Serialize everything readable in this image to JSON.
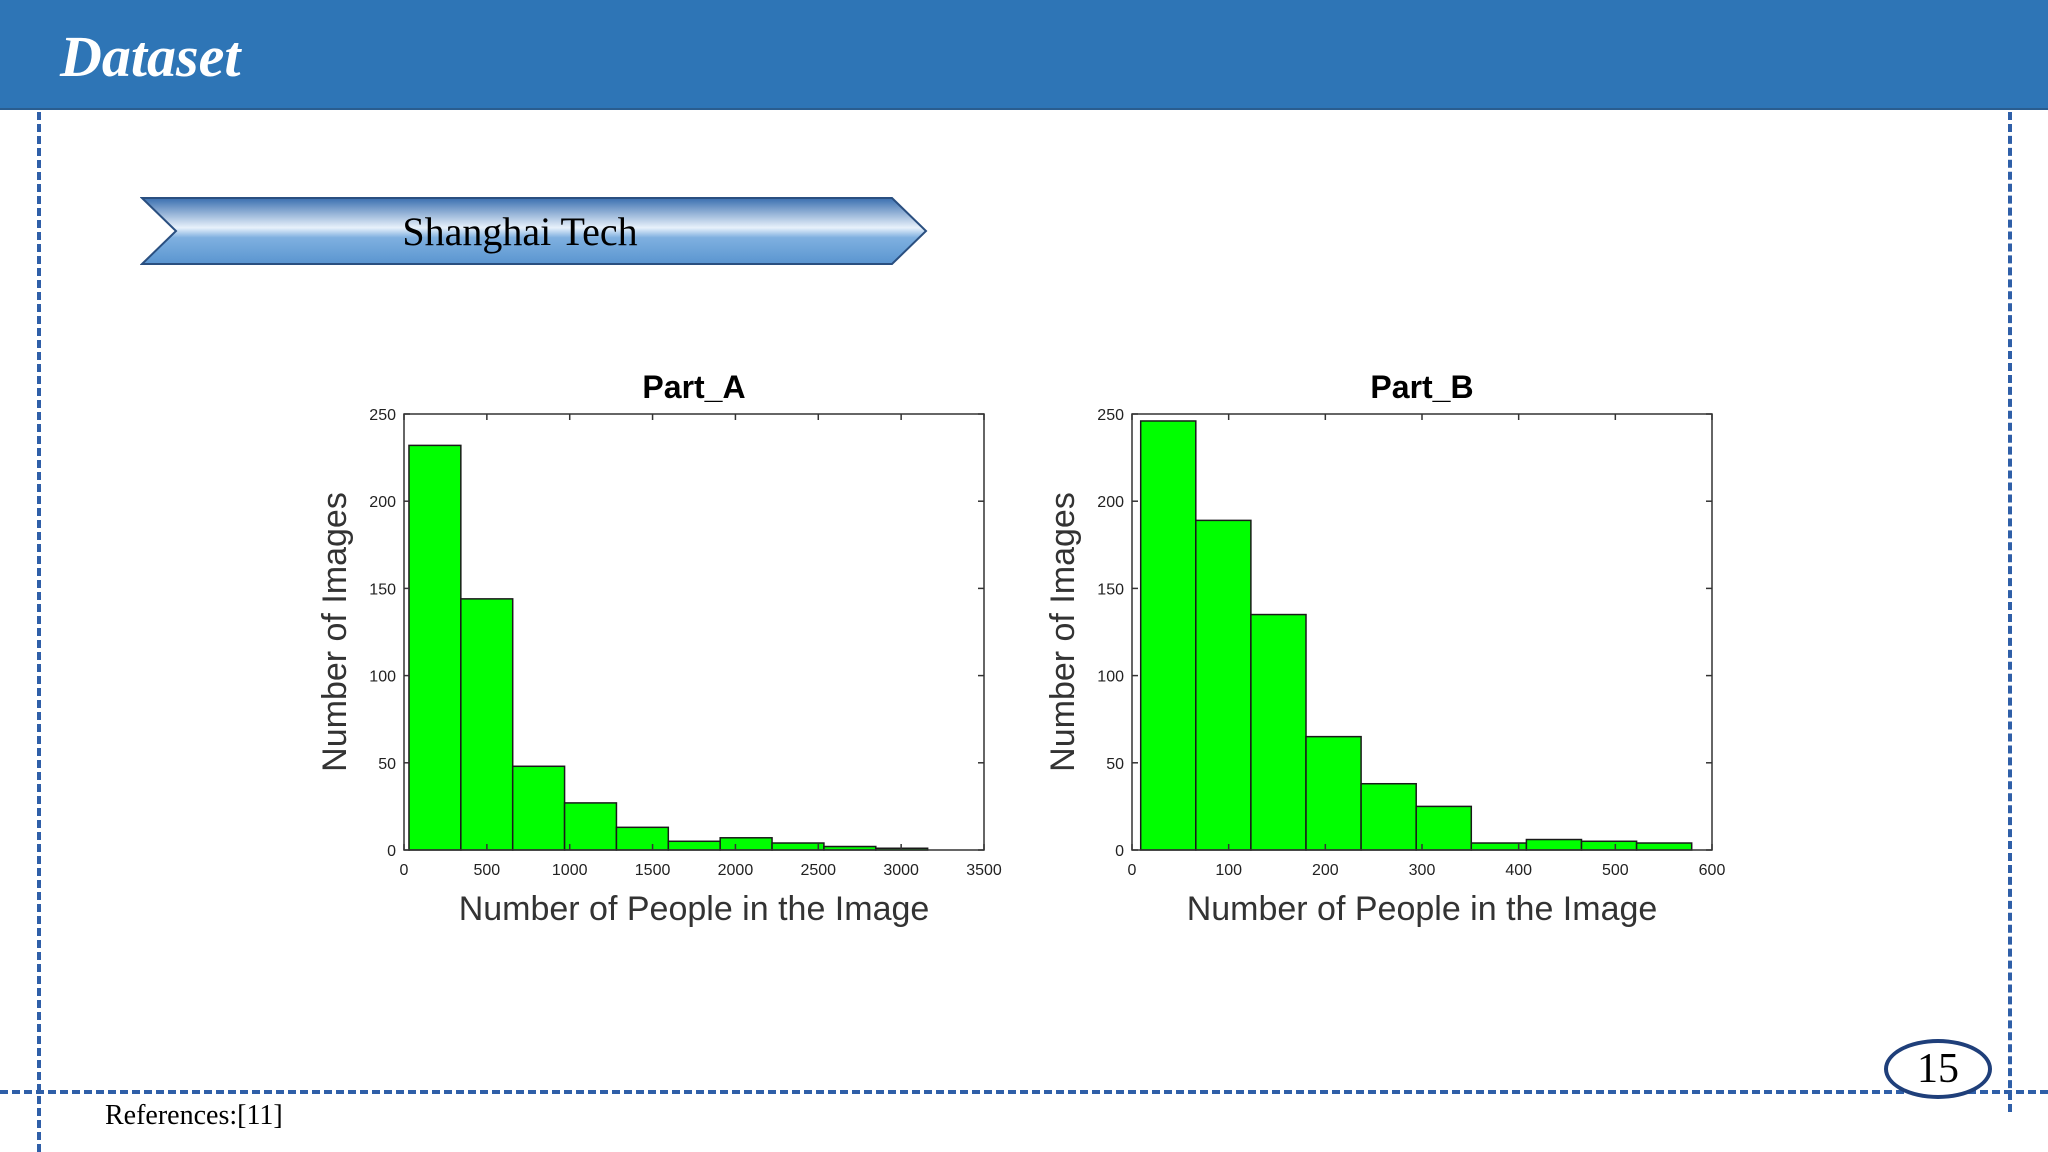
{
  "header": {
    "title": "Dataset"
  },
  "banner": {
    "label": "Shanghai Tech"
  },
  "footer": {
    "references": "References:[11]",
    "page_number": "15"
  },
  "colors": {
    "header_bg": "#2e75b6",
    "dash": "#2f5fa8",
    "bar_fill": "#00ff00",
    "bar_stroke": "#1a1a1a"
  },
  "chart_data": [
    {
      "type": "bar",
      "title": "Part_A",
      "xlabel": "Number of People in the Image",
      "ylabel": "Number of Images",
      "xlim": [
        0,
        3500
      ],
      "ylim": [
        0,
        250
      ],
      "xticks": [
        0,
        500,
        1000,
        1500,
        2000,
        2500,
        3000,
        3500
      ],
      "yticks": [
        0,
        50,
        100,
        150,
        200,
        250
      ],
      "bin_edges": [
        30,
        343,
        656,
        969,
        1282,
        1595,
        1908,
        2221,
        2534,
        2847,
        3160
      ],
      "values": [
        232,
        144,
        48,
        27,
        13,
        5,
        7,
        4,
        2,
        1
      ],
      "grid": false
    },
    {
      "type": "bar",
      "title": "Part_B",
      "xlabel": "Number of People in the Image",
      "ylabel": "Number of Images",
      "xlim": [
        0,
        600
      ],
      "ylim": [
        0,
        250
      ],
      "xticks": [
        0,
        100,
        200,
        300,
        400,
        500,
        600
      ],
      "yticks": [
        0,
        50,
        100,
        150,
        200,
        250
      ],
      "bin_edges": [
        9,
        66,
        123,
        180,
        237,
        294,
        351,
        408,
        465,
        522,
        579
      ],
      "values": [
        246,
        189,
        135,
        65,
        38,
        25,
        4,
        6,
        5,
        4
      ],
      "grid": false
    }
  ]
}
